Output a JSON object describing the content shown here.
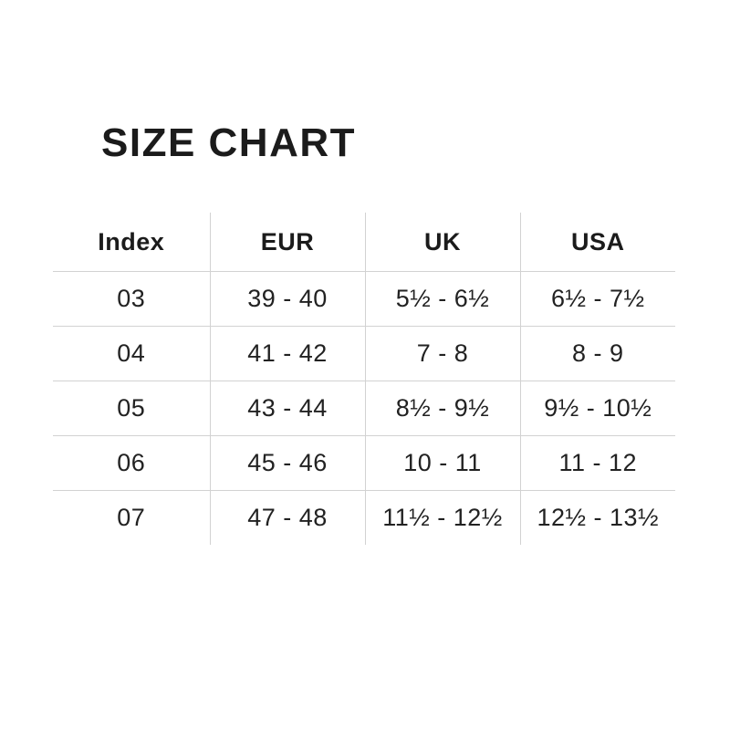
{
  "chart_data": {
    "type": "table",
    "title": "SIZE CHART",
    "columns": [
      "Index",
      "EUR",
      "UK",
      "USA"
    ],
    "rows": [
      [
        "03",
        "39 - 40",
        "5½ - 6½",
        "6½ - 7½"
      ],
      [
        "04",
        "41 - 42",
        "7 - 8",
        "8 - 9"
      ],
      [
        "05",
        "43 - 44",
        "8½ - 9½",
        "9½ - 10½"
      ],
      [
        "06",
        "45 - 46",
        "10 - 11",
        "11 - 12"
      ],
      [
        "07",
        "47 - 48",
        "11½ - 12½",
        "12½ - 13½"
      ]
    ],
    "layout": {
      "grid": "inner-borders-only",
      "header_weight": "bold",
      "body_weight": "light"
    },
    "colors": {
      "background": "#ffffff",
      "text": "#1e1e1e",
      "grid_line": "#d2d2d2"
    }
  }
}
